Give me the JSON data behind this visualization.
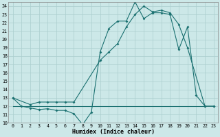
{
  "xlabel": "Humidex (Indice chaleur)",
  "xlim": [
    -0.5,
    23.5
  ],
  "ylim": [
    10,
    24.5
  ],
  "xticks": [
    0,
    1,
    2,
    3,
    4,
    5,
    6,
    7,
    8,
    9,
    10,
    11,
    12,
    13,
    14,
    15,
    16,
    17,
    18,
    19,
    20,
    21,
    22,
    23
  ],
  "yticks": [
    10,
    11,
    12,
    13,
    14,
    15,
    16,
    17,
    18,
    19,
    20,
    21,
    22,
    23,
    24
  ],
  "bg_color": "#cce8e8",
  "grid_color": "#aacece",
  "line_color": "#1a7070",
  "line1_x": [
    0,
    1,
    2,
    3,
    4,
    5,
    6,
    7,
    8,
    9,
    10,
    11,
    12,
    13,
    14,
    15,
    16,
    17,
    18,
    19,
    20,
    21,
    22,
    23
  ],
  "line1_y": [
    13,
    12,
    11.8,
    11.6,
    11.7,
    11.5,
    11.5,
    11.1,
    9.8,
    11.3,
    18.5,
    21.3,
    22.2,
    22.2,
    24.5,
    22.5,
    23.2,
    23.2,
    23.0,
    18.8,
    21.5,
    13.3,
    12.0,
    12.0
  ],
  "line2_x": [
    0,
    2,
    3,
    4,
    5,
    6,
    7,
    10,
    11,
    12,
    13,
    14,
    15,
    16,
    17,
    18,
    19,
    20,
    22,
    23
  ],
  "line2_y": [
    13,
    12.2,
    12.5,
    12.5,
    12.5,
    12.5,
    12.5,
    17.5,
    18.5,
    19.5,
    21.5,
    23.0,
    24.0,
    23.3,
    23.5,
    23.2,
    21.8,
    19.0,
    12.0,
    12.0
  ],
  "line3_x": [
    0,
    22
  ],
  "line3_y": [
    12,
    12
  ],
  "marker_on_line1": true,
  "marker_on_line2": true,
  "marker_on_line3": false
}
